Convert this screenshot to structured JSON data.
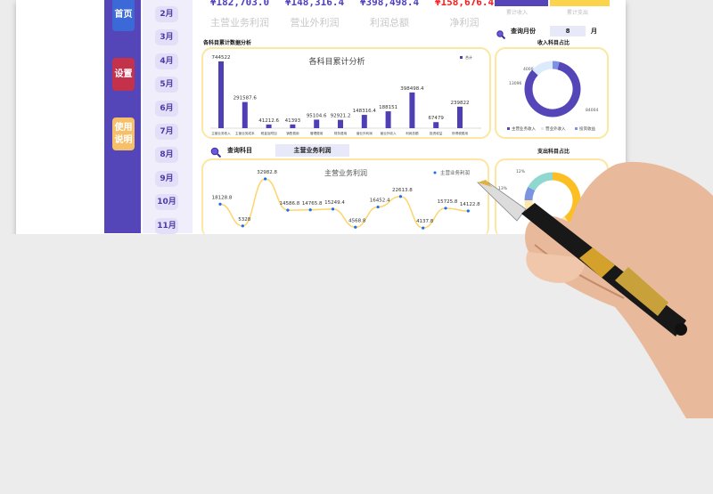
{
  "nav": {
    "home": "首页",
    "settings": "设置",
    "help": "使用说明"
  },
  "months": [
    "2月",
    "3月",
    "4月",
    "5月",
    "6月",
    "7月",
    "8月",
    "9月",
    "10月",
    "11月"
  ],
  "kpis": [
    {
      "value": "¥182,703.0",
      "label": "主营业务利润",
      "color": "#4c3fc0"
    },
    {
      "value": "¥148,316.4",
      "label": "营业外利润",
      "color": "#4c3fc0"
    },
    {
      "value": "¥398,498.4",
      "label": "利润总额",
      "color": "#4c3fc0"
    },
    {
      "value": "¥158,676.4",
      "label": "净利润",
      "color": "#ff1a1a"
    }
  ],
  "totals": {
    "income_label": "累计收入",
    "expense_label": "累计支出",
    "income_color": "#5446b8",
    "expense_color": "#fcd34d"
  },
  "month_query": {
    "label": "查询月份",
    "value": "8",
    "unit": "月"
  },
  "subject_query": {
    "label": "查询科目",
    "value": "主营业务利润"
  },
  "sections": {
    "bar": "各科目累计数据分析",
    "income_pie": "收入科目占比",
    "expense_pie": "支出科目占比"
  },
  "chart_data": [
    {
      "type": "bar",
      "title": "各科目累计分析",
      "legend": [
        "合计"
      ],
      "legend_position": "top-right",
      "categories": [
        "主营业务收入",
        "主营业务成本",
        "税金及附加",
        "销售费用",
        "管理费用",
        "财务费用",
        "营业外利润",
        "营业外收入",
        "利润总额",
        "投资收益",
        "所得税费用"
      ],
      "values": [
        744522,
        291587.6,
        41212.6,
        41393,
        95104.6,
        92921.2,
        148316.4,
        188151,
        398498.4,
        67479,
        239822
      ],
      "labels": [
        "744522",
        "291587.6",
        "41212.6",
        "41393",
        "95104.6",
        "92921.2",
        "148316.4",
        "188151",
        "398498.4",
        "67479",
        "239822"
      ],
      "color": "#4f3fb5"
    },
    {
      "type": "pie",
      "categories": [
        "主营业务收入",
        "营业外收入",
        "投资收益"
      ],
      "values": [
        84004,
        13096,
        4000
      ],
      "labels": [
        "84004",
        "13096",
        "4000"
      ],
      "colors": [
        "#5446b8",
        "#dceafd",
        "#7b93e0"
      ],
      "legend_position": "bottom"
    },
    {
      "type": "line",
      "title": "主营业务利润",
      "legend": [
        "主营业务利润"
      ],
      "legend_position": "top-right",
      "values": [
        18128.8,
        5328,
        32982.8,
        14586.8,
        14765.8,
        15249.4,
        4568.8,
        16452.4,
        22613.8,
        4137.8,
        15725.8,
        14122.8
      ],
      "labels": [
        "18128.8",
        "5328",
        "32982.8",
        "14586.8",
        "14765.8",
        "15249.4",
        "4568.8",
        "16452.4",
        "22613.8",
        "4137.8",
        "15725.8",
        "14122.8"
      ],
      "line_color": "#fcd66b",
      "point_color": "#1a6cf0"
    },
    {
      "type": "pie",
      "labels": [
        "12%",
        "13%"
      ],
      "colors": [
        "#fbbf24",
        "#fde7a8",
        "#7b93e0",
        "#8fd8d0"
      ]
    }
  ]
}
